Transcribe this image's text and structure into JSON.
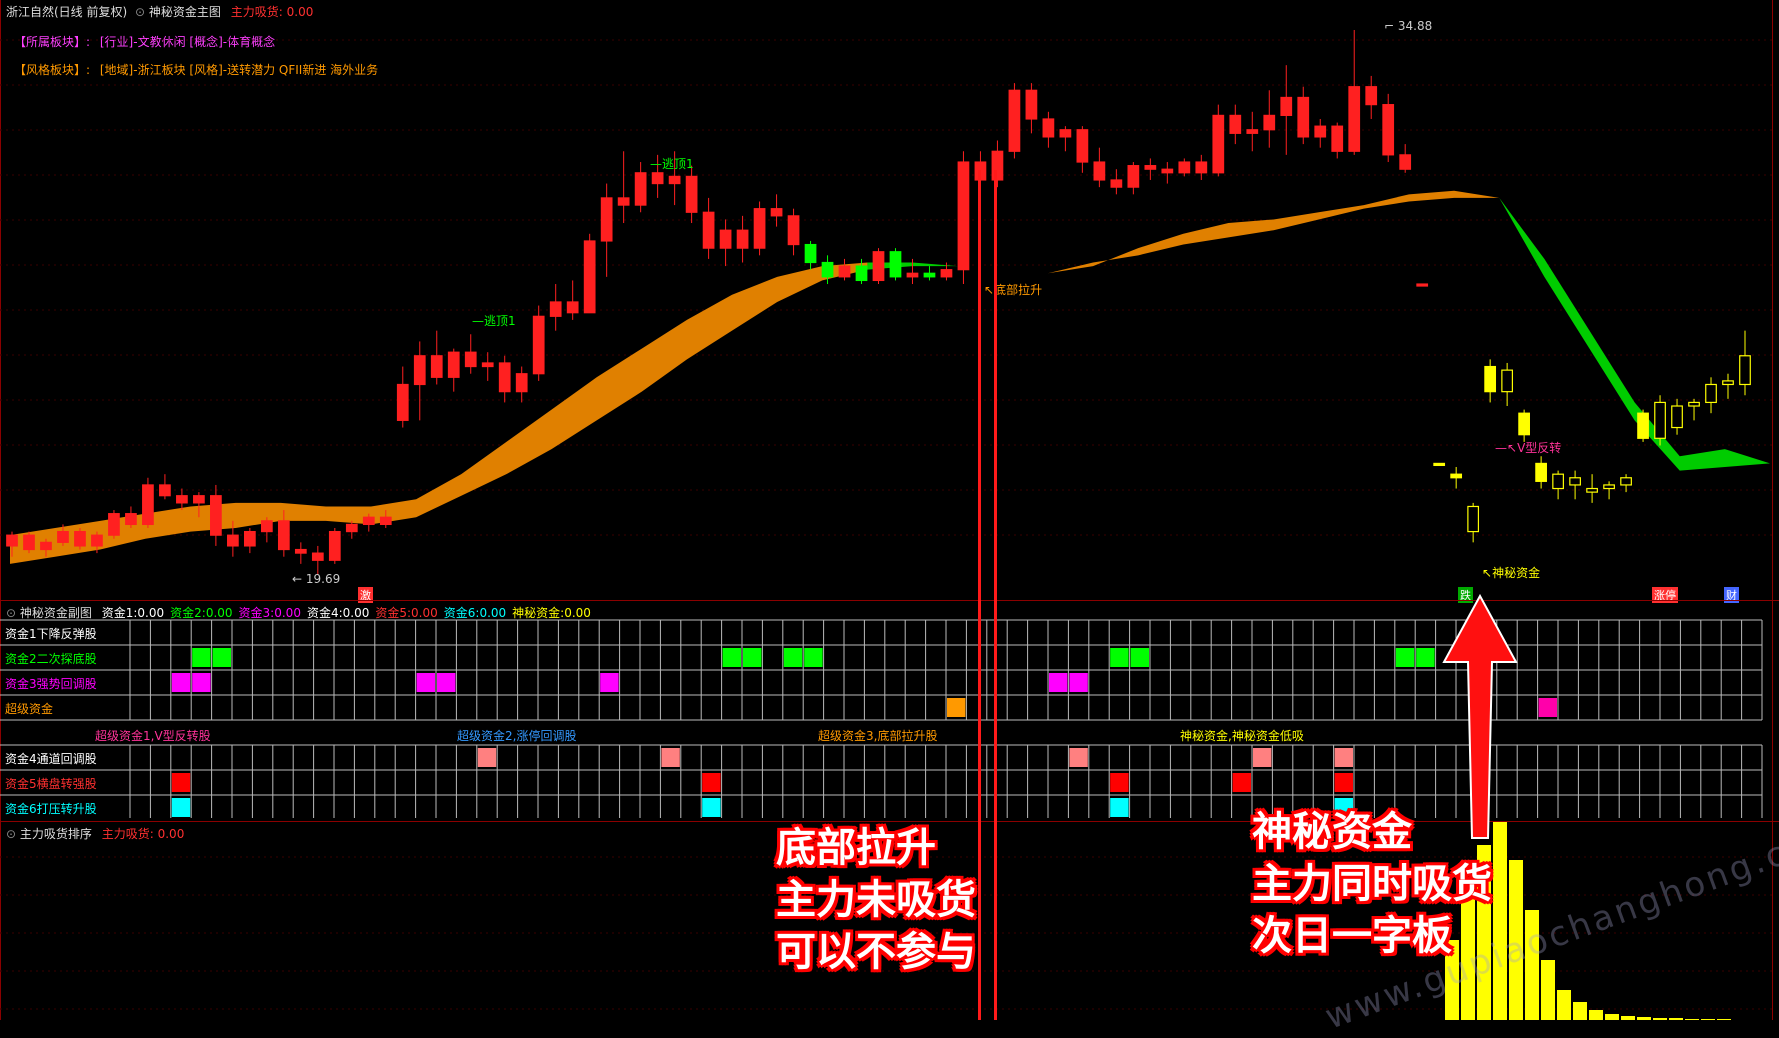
{
  "header": {
    "stock": "浙江自然(日线 前复权)",
    "chart_title": "神秘资金主图",
    "indicator_label": "主力吸货:",
    "indicator_value": "0.00"
  },
  "sectors": {
    "industry_tag": "【所属板块】:",
    "industry_text": "[行业]-文教休闲 [概念]-体育概念",
    "style_tag": "【风格板块】:",
    "style_text": "[地域]-浙江板块 [风格]-送转潜力 QFII新进 海外业务"
  },
  "price_labels": {
    "high": "34.88",
    "low": "19.69"
  },
  "annotations": {
    "escape_top_1": "逃顶1",
    "escape_top_2": "逃顶1",
    "bottom_lift": "底部拉升",
    "v_reversal": "V型反转",
    "mystery_fund": "神秘资金"
  },
  "bottom_badges": {
    "left": "激",
    "mid": "跌",
    "right1": "涨停",
    "right2": "财"
  },
  "sub_panel": {
    "title": "神秘资金副图",
    "items": [
      {
        "label": "资金1:",
        "value": "0.00",
        "color": "#ffffff"
      },
      {
        "label": "资金2:",
        "value": "0.00",
        "color": "#00ff00"
      },
      {
        "label": "资金3:",
        "value": "0.00",
        "color": "#ff00ff"
      },
      {
        "label": "资金4:",
        "value": "0.00",
        "color": "#ffffff"
      },
      {
        "label": "资金5:",
        "value": "0.00",
        "color": "#ff3030"
      },
      {
        "label": "资金6:",
        "value": "0.00",
        "color": "#00ffff"
      },
      {
        "label": "神秘资金:",
        "value": "0.00",
        "color": "#ffff00"
      }
    ],
    "rows_top": [
      {
        "label": "资金1下降反弹股",
        "color": "#ffffff"
      },
      {
        "label": "资金2二次探底股",
        "color": "#00ff00"
      },
      {
        "label": "资金3强势回调股",
        "color": "#ff00ff"
      },
      {
        "label": "超级资金",
        "color": "#ff9900"
      }
    ],
    "legend": [
      {
        "text": "超级资金1,V型反转股",
        "color": "#ff3399"
      },
      {
        "text": "超级资金2,涨停回调股",
        "color": "#3399ff"
      },
      {
        "text": "超级资金3,底部拉升股",
        "color": "#ff9900"
      },
      {
        "text": "神秘资金,神秘资金低吸",
        "color": "#ffff00"
      }
    ],
    "rows_bottom": [
      {
        "label": "资金4通道回调股",
        "color": "#ffffff"
      },
      {
        "label": "资金5横盘转强股",
        "color": "#ff3030"
      },
      {
        "label": "资金6打压转升股",
        "color": "#00ffff"
      }
    ]
  },
  "bottom_panel": {
    "title": "主力吸货排序",
    "label": "主力吸货:",
    "value": "0.00"
  },
  "callouts": {
    "left": [
      "底部拉升",
      "主力未吸货",
      "可以不参与"
    ],
    "right": [
      "神秘资金",
      "主力同时吸货",
      "次日一字板"
    ]
  },
  "watermark": "www.gupiaochanghong.com",
  "colors": {
    "up": "#ff2020",
    "down": "#00ff00",
    "band_up": "#e08000",
    "band_down": "#00cc00",
    "yellow": "#ffff00",
    "border": "#8b0000"
  },
  "chart_data": {
    "type": "candlestick",
    "y_axis_range": [
      19.69,
      34.88
    ],
    "candles": [
      [
        20.5,
        20.9,
        20.2,
        20.8
      ],
      [
        20.8,
        20.9,
        20.3,
        20.4
      ],
      [
        20.4,
        20.7,
        20.2,
        20.6
      ],
      [
        20.6,
        21.1,
        20.5,
        20.9
      ],
      [
        20.9,
        21.0,
        20.4,
        20.5
      ],
      [
        20.5,
        20.9,
        20.3,
        20.8
      ],
      [
        20.8,
        21.5,
        20.7,
        21.4
      ],
      [
        21.4,
        21.6,
        21.0,
        21.1
      ],
      [
        21.1,
        22.4,
        21.0,
        22.2
      ],
      [
        22.2,
        22.5,
        21.8,
        21.9
      ],
      [
        21.9,
        22.1,
        21.5,
        21.7
      ],
      [
        21.7,
        22.0,
        21.3,
        21.9
      ],
      [
        21.9,
        22.2,
        20.5,
        20.8
      ],
      [
        20.8,
        21.2,
        20.2,
        20.5
      ],
      [
        20.5,
        21.0,
        20.3,
        20.9
      ],
      [
        20.9,
        21.3,
        20.6,
        21.2
      ],
      [
        21.2,
        21.5,
        20.2,
        20.4
      ],
      [
        20.4,
        20.6,
        20.0,
        20.3
      ],
      [
        20.3,
        20.5,
        19.69,
        20.1
      ],
      [
        20.1,
        21.0,
        20.0,
        20.9
      ],
      [
        20.9,
        21.2,
        20.7,
        21.1
      ],
      [
        21.1,
        21.4,
        20.9,
        21.3
      ],
      [
        21.3,
        21.5,
        21.0,
        21.1
      ],
      [
        24.0,
        25.5,
        23.8,
        25.0
      ],
      [
        25.0,
        26.2,
        24.0,
        25.8
      ],
      [
        25.8,
        26.5,
        25.0,
        25.2
      ],
      [
        25.2,
        26.0,
        24.8,
        25.9
      ],
      [
        25.9,
        26.4,
        25.3,
        25.5
      ],
      [
        25.5,
        25.9,
        25.1,
        25.6
      ],
      [
        25.6,
        25.8,
        24.5,
        24.8
      ],
      [
        24.8,
        25.5,
        24.5,
        25.3
      ],
      [
        25.3,
        27.2,
        25.1,
        26.9
      ],
      [
        26.9,
        27.8,
        26.5,
        27.3
      ],
      [
        27.3,
        27.9,
        26.8,
        27.0
      ],
      [
        27.0,
        29.2,
        27.0,
        29.0
      ],
      [
        29.0,
        30.6,
        28.0,
        30.2
      ],
      [
        30.2,
        31.5,
        29.5,
        30.0
      ],
      [
        30.0,
        31.2,
        29.8,
        30.9
      ],
      [
        30.9,
        31.4,
        30.2,
        30.6
      ],
      [
        30.6,
        31.5,
        30.0,
        30.8
      ],
      [
        30.8,
        31.1,
        29.5,
        29.8
      ],
      [
        29.8,
        30.2,
        28.5,
        28.8
      ],
      [
        28.8,
        29.6,
        28.3,
        29.3
      ],
      [
        29.3,
        29.7,
        28.4,
        28.8
      ],
      [
        28.8,
        30.1,
        28.6,
        29.9
      ],
      [
        29.9,
        30.3,
        29.4,
        29.7
      ],
      [
        29.7,
        29.9,
        28.6,
        28.9
      ],
      [
        28.9,
        29.0,
        28.2,
        28.4
      ],
      [
        28.4,
        28.6,
        27.8,
        28.0
      ],
      [
        28.0,
        28.5,
        27.9,
        28.3
      ],
      [
        28.3,
        28.5,
        27.8,
        27.9
      ],
      [
        27.9,
        28.8,
        27.8,
        28.7
      ],
      [
        28.7,
        28.8,
        27.9,
        28.0
      ],
      [
        28.0,
        28.5,
        27.8,
        28.1
      ],
      [
        28.1,
        28.3,
        27.9,
        28.0
      ],
      [
        28.0,
        28.4,
        27.9,
        28.2
      ],
      [
        28.2,
        31.5,
        27.8,
        31.2
      ],
      [
        31.2,
        31.5,
        30.4,
        30.7
      ],
      [
        30.7,
        31.8,
        30.5,
        31.5
      ],
      [
        31.5,
        33.4,
        31.3,
        33.2
      ],
      [
        33.2,
        33.4,
        32.0,
        32.4
      ],
      [
        32.4,
        32.6,
        31.6,
        31.9
      ],
      [
        31.9,
        32.2,
        31.5,
        32.1
      ],
      [
        32.1,
        32.2,
        30.9,
        31.2
      ],
      [
        31.2,
        31.6,
        30.5,
        30.7
      ],
      [
        30.7,
        31.0,
        30.3,
        30.5
      ],
      [
        30.5,
        31.2,
        30.3,
        31.1
      ],
      [
        31.1,
        31.3,
        30.7,
        31.0
      ],
      [
        31.0,
        31.2,
        30.6,
        30.9
      ],
      [
        30.9,
        31.3,
        30.8,
        31.2
      ],
      [
        31.2,
        31.4,
        30.7,
        30.9
      ],
      [
        30.9,
        32.8,
        30.8,
        32.5
      ],
      [
        32.5,
        32.8,
        31.7,
        32.0
      ],
      [
        32.0,
        32.6,
        31.5,
        32.1
      ],
      [
        32.1,
        33.2,
        31.6,
        32.5
      ],
      [
        32.5,
        33.9,
        31.4,
        33.0
      ],
      [
        33.0,
        33.3,
        31.7,
        31.9
      ],
      [
        31.9,
        32.4,
        31.6,
        32.2
      ],
      [
        32.2,
        32.3,
        31.3,
        31.5
      ],
      [
        31.5,
        34.88,
        31.4,
        33.3
      ],
      [
        33.3,
        33.6,
        32.4,
        32.8
      ],
      [
        32.8,
        33.1,
        31.2,
        31.4
      ],
      [
        31.4,
        31.7,
        30.9,
        31.0
      ],
      [
        27.8,
        27.8,
        27.8,
        27.8
      ],
      [
        22.8,
        22.8,
        22.8,
        22.8
      ],
      [
        22.5,
        22.7,
        22.1,
        22.4
      ],
      [
        20.9,
        21.7,
        20.6,
        21.6
      ],
      [
        25.5,
        25.7,
        24.5,
        24.8
      ],
      [
        24.8,
        25.6,
        24.4,
        25.4
      ],
      [
        24.2,
        24.3,
        23.4,
        23.6
      ],
      [
        22.8,
        23.0,
        22.1,
        22.3
      ],
      [
        22.1,
        22.6,
        21.8,
        22.5
      ],
      [
        22.2,
        22.6,
        21.8,
        22.4
      ],
      [
        22.0,
        22.5,
        21.7,
        22.1
      ],
      [
        22.1,
        22.3,
        21.8,
        22.2
      ],
      [
        22.2,
        22.5,
        22.0,
        22.4
      ],
      [
        24.2,
        24.3,
        23.4,
        23.5
      ],
      [
        23.5,
        24.7,
        23.3,
        24.5
      ],
      [
        23.8,
        24.6,
        23.6,
        24.4
      ],
      [
        24.4,
        24.6,
        24.0,
        24.5
      ],
      [
        24.5,
        25.2,
        24.2,
        25.0
      ],
      [
        25.0,
        25.3,
        24.6,
        25.1
      ],
      [
        25.0,
        26.5,
        24.7,
        25.8
      ]
    ],
    "band_upper": [
      20.8,
      21.0,
      21.2,
      21.4,
      21.6,
      21.7,
      21.7,
      21.6,
      21.6,
      21.8,
      22.5,
      23.4,
      24.3,
      25.2,
      26.0,
      26.8,
      27.5,
      28.0,
      28.3,
      28.4,
      28.4,
      28.3,
      28.2,
      28.1,
      28.3,
      28.8,
      29.2,
      29.5,
      29.6,
      29.8,
      30.0,
      30.3,
      30.4,
      30.2,
      28.5,
      26.5,
      24.5,
      23.0,
      23.2,
      22.8
    ],
    "band_lower": [
      20.0,
      20.2,
      20.4,
      20.7,
      20.9,
      21.0,
      21.2,
      21.2,
      21.1,
      21.3,
      21.9,
      22.5,
      23.2,
      24.0,
      24.8,
      25.7,
      26.5,
      27.3,
      27.9,
      28.2,
      28.3,
      28.3,
      28.2,
      28.1,
      28.4,
      28.6,
      28.9,
      29.1,
      29.3,
      29.6,
      29.9,
      30.1,
      30.2,
      30.2,
      28.0,
      26.0,
      24.0,
      22.6,
      22.7,
      22.8
    ]
  }
}
